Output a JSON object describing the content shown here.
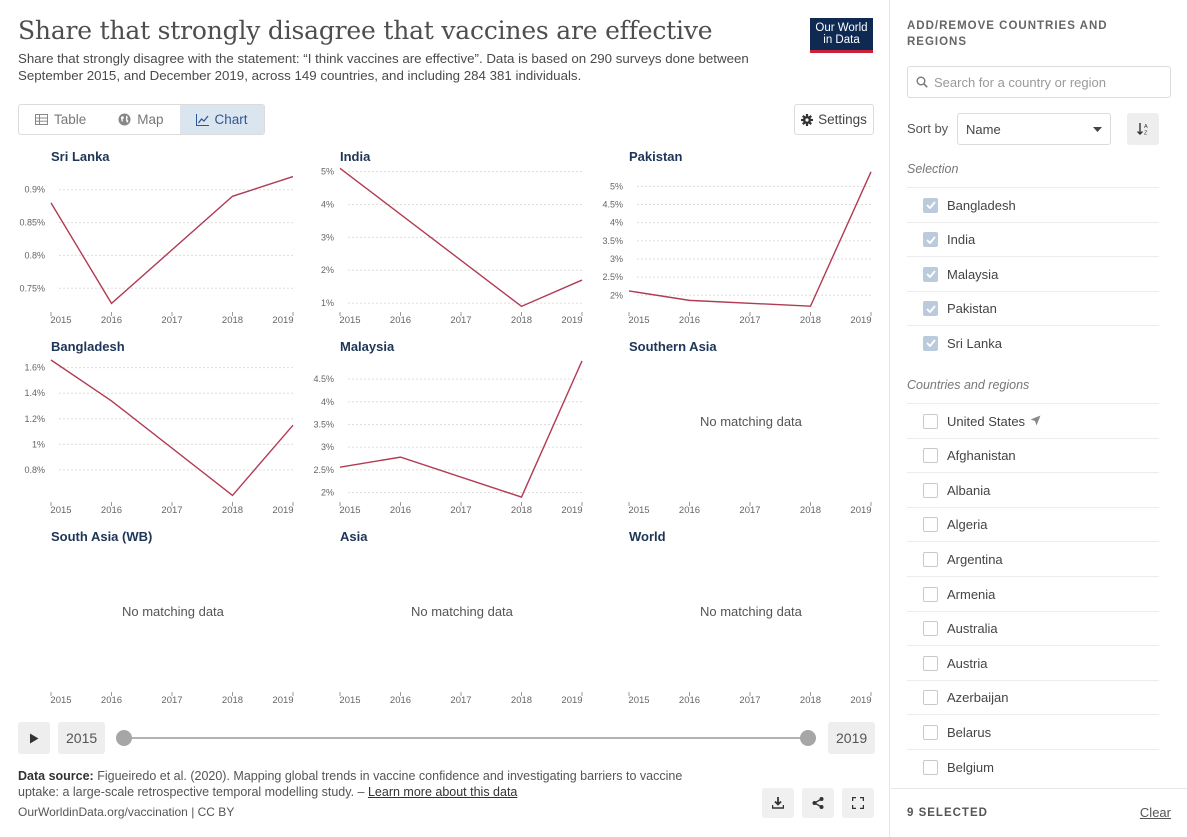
{
  "header": {
    "title": "Share that strongly disagree that vaccines are effective",
    "subtitle": "Share that strongly disagree with the statement: “I think vaccines are effective”. Data is based on 290 surveys done between September 2015, and December 2019, across 149 countries, and including 284 381 individuals.",
    "logo_line1": "Our World",
    "logo_line2": "in Data"
  },
  "tabs": [
    {
      "label": "Table",
      "icon": "table-icon"
    },
    {
      "label": "Map",
      "icon": "globe-icon"
    },
    {
      "label": "Chart",
      "icon": "line-chart-icon",
      "active": true
    }
  ],
  "settings_label": "Settings",
  "no_data_label": "No matching data",
  "chart_data": {
    "type": "line",
    "x_ticks": [
      "2015",
      "2016",
      "2017",
      "2018",
      "2019"
    ],
    "line_color": "#b13b52",
    "panels": [
      {
        "name": "Sri Lanka",
        "x": [
          2015,
          2016,
          2018,
          2019
        ],
        "y": [
          0.88,
          0.727,
          0.89,
          0.92
        ],
        "y_ticks": [
          "0.9%",
          "0.85%",
          "0.8%",
          "0.75%"
        ],
        "y_tick_values": [
          0.9,
          0.85,
          0.8,
          0.75
        ],
        "ylim": [
          0.72,
          0.93
        ]
      },
      {
        "name": "India",
        "x": [
          2015,
          2018,
          2019
        ],
        "y": [
          5.1,
          0.9,
          1.7
        ],
        "y_ticks": [
          "5%",
          "4%",
          "3%",
          "2%",
          "1%"
        ],
        "y_tick_values": [
          5,
          4,
          3,
          2,
          1
        ],
        "ylim": [
          0.85,
          5.05
        ]
      },
      {
        "name": "Pakistan",
        "x": [
          2015,
          2016,
          2018,
          2019
        ],
        "y": [
          2.12,
          1.86,
          1.7,
          5.4
        ],
        "y_ticks": [
          "5%",
          "4.5%",
          "4%",
          "3.5%",
          "3%",
          "2.5%",
          "2%"
        ],
        "y_tick_values": [
          5,
          4.5,
          4,
          3.5,
          3,
          2.5,
          2
        ],
        "ylim": [
          1.65,
          5.45
        ]
      },
      {
        "name": "Bangladesh",
        "x": [
          2015,
          2016,
          2018,
          2019
        ],
        "y": [
          1.66,
          1.34,
          0.6,
          1.15
        ],
        "y_ticks": [
          "1.6%",
          "1.4%",
          "1.2%",
          "1%",
          "0.8%"
        ],
        "y_tick_values": [
          1.6,
          1.4,
          1.2,
          1.0,
          0.8
        ],
        "ylim": [
          0.58,
          1.66
        ]
      },
      {
        "name": "Malaysia",
        "x": [
          2015,
          2016,
          2018,
          2019
        ],
        "y": [
          2.56,
          2.78,
          1.9,
          4.9
        ],
        "y_ticks": [
          "4.5%",
          "4%",
          "3.5%",
          "3%",
          "2.5%",
          "2%"
        ],
        "y_tick_values": [
          4.5,
          4,
          3.5,
          3,
          2.5,
          2
        ],
        "ylim": [
          1.88,
          4.92
        ]
      },
      {
        "name": "Southern Asia",
        "x": [],
        "y": [],
        "y_ticks": [],
        "y_tick_values": []
      },
      {
        "name": "South Asia (WB)",
        "x": [],
        "y": [],
        "y_ticks": [],
        "y_tick_values": []
      },
      {
        "name": "Asia",
        "x": [],
        "y": [],
        "y_ticks": [],
        "y_tick_values": []
      },
      {
        "name": "World",
        "x": [],
        "y": [],
        "y_ticks": [],
        "y_tick_values": []
      }
    ]
  },
  "timeline": {
    "start": "2015",
    "end": "2019"
  },
  "footer": {
    "source_label": "Data source:",
    "source_text": "Figueiredo et al. (2020). Mapping global trends in vaccine confidence and investigating barriers to vaccine uptake: a large-scale retrospective temporal modelling study. –",
    "learn_more": "Learn more about this data",
    "license": "OurWorldinData.org/vaccination | CC BY"
  },
  "sidebar": {
    "title": "ADD/REMOVE COUNTRIES AND REGIONS",
    "search_placeholder": "Search for a country or region",
    "sort_label": "Sort by",
    "sort_value": "Name",
    "selection_label": "Selection",
    "selected": [
      "Bangladesh",
      "India",
      "Malaysia",
      "Pakistan",
      "Sri Lanka"
    ],
    "others_label": "Countries and regions",
    "others": [
      "United States",
      "Afghanistan",
      "Albania",
      "Algeria",
      "Argentina",
      "Armenia",
      "Australia",
      "Austria",
      "Azerbaijan",
      "Belarus",
      "Belgium"
    ],
    "selected_count": "9 SELECTED",
    "clear_label": "Clear"
  }
}
